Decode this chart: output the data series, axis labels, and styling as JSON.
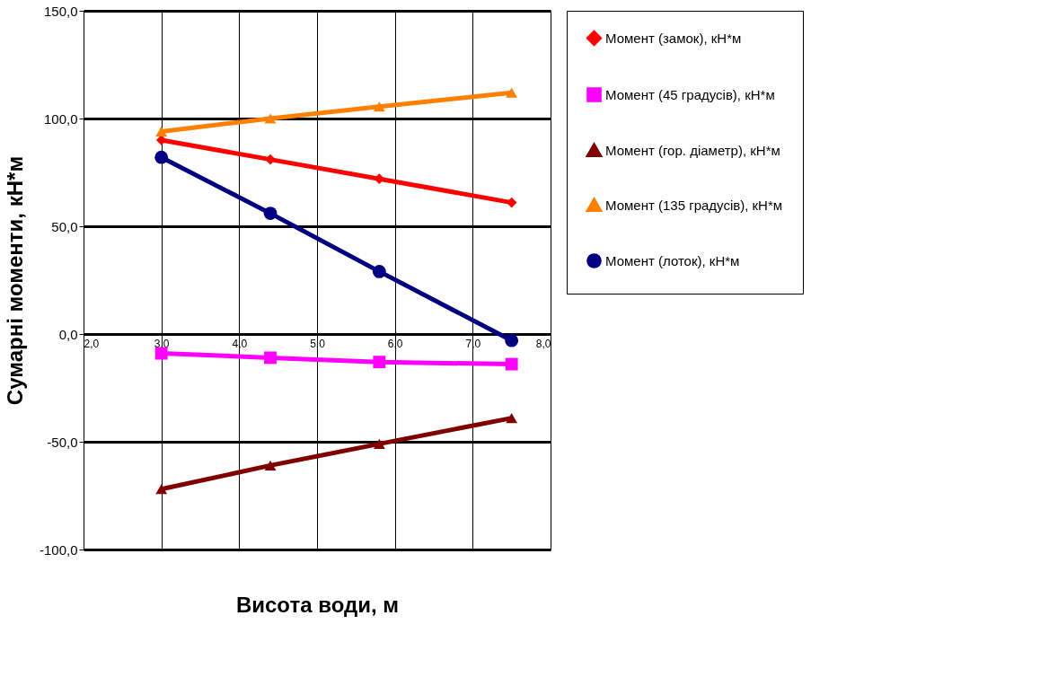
{
  "chart_data": {
    "type": "line",
    "xlabel": "Висота води, м",
    "ylabel": "Сумарні моменти, кН*м",
    "x": [
      3.0,
      4.4,
      5.8,
      7.5
    ],
    "xlim": [
      2,
      8
    ],
    "xticks": [
      {
        "value": 2,
        "label": "2,0"
      },
      {
        "value": 3,
        "label": "3,0"
      },
      {
        "value": 4,
        "label": "4,0"
      },
      {
        "value": 5,
        "label": "5,0"
      },
      {
        "value": 6,
        "label": "6,0"
      },
      {
        "value": 7,
        "label": "7,0"
      },
      {
        "value": 8,
        "label": "8,0"
      }
    ],
    "ylim": [
      -100,
      150
    ],
    "yticks": [
      {
        "value": -100,
        "label": "-100,0"
      },
      {
        "value": -50,
        "label": "-50,0"
      },
      {
        "value": 0,
        "label": "0,0"
      },
      {
        "value": 50,
        "label": "50,0"
      },
      {
        "value": 100,
        "label": "100,0"
      },
      {
        "value": 150,
        "label": "150,0"
      }
    ],
    "grid": true,
    "legend": "right",
    "line_style": "solid",
    "series": [
      {
        "name": "Момент (замок), кН*м",
        "color": "#ff0000",
        "marker": "diamond",
        "values": [
          90,
          81,
          72,
          61
        ]
      },
      {
        "name": "Момент (45 градусів), кН*м",
        "color": "#ff00ff",
        "marker": "square",
        "values": [
          -9,
          -11,
          -13,
          -14
        ]
      },
      {
        "name": "Момент (гор. діаметр), кН*м",
        "color": "#800000",
        "marker": "triangle",
        "values": [
          -72,
          -61,
          -51,
          -39
        ]
      },
      {
        "name": "Момент (135 градусів), кН*м",
        "color": "#ff8000",
        "marker": "triangle",
        "values": [
          94,
          100,
          105.5,
          112
        ]
      },
      {
        "name": "Момент (лоток), кН*м",
        "color": "#000080",
        "marker": "circle",
        "values": [
          82,
          56,
          29,
          -3
        ]
      }
    ]
  }
}
